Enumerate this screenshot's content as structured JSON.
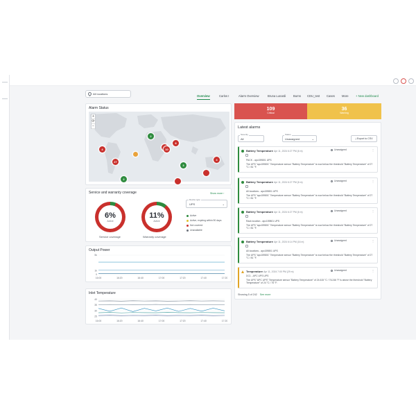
{
  "location_select": {
    "value": "All locations"
  },
  "tabs": [
    {
      "label": "Overview",
      "active": true
    },
    {
      "label": "Carlos I",
      "active": false
    },
    {
      "label": "Alarm Overview",
      "active": false
    },
    {
      "label": "Bruna Lunardi",
      "active": false
    },
    {
      "label": "Burns",
      "active": false
    },
    {
      "label": "CDU_test",
      "active": false
    },
    {
      "label": "Cases",
      "active": false
    },
    {
      "label": "More",
      "active": false
    }
  ],
  "new_dashboard_label": "New dashboard",
  "alarm_status": {
    "title": "Alarm Status",
    "zoom_in": "+",
    "zoom_reset": "⟳",
    "zoom_out": "−",
    "clusters": [
      {
        "label": "4",
        "color": "red"
      },
      {
        "label": "2",
        "color": "green"
      },
      {
        "label": "",
        "color": "red"
      },
      {
        "label": "8",
        "color": "red"
      },
      {
        "label": "10",
        "color": "red"
      },
      {
        "label": "27",
        "color": "red"
      },
      {
        "label": "",
        "color": "orange"
      },
      {
        "label": "3",
        "color": "green"
      },
      {
        "label": "4",
        "color": "red"
      },
      {
        "label": "2",
        "color": "green"
      },
      {
        "label": "",
        "color": "red"
      },
      {
        "label": "",
        "color": "red"
      }
    ]
  },
  "coverage": {
    "title": "Service and warranty coverage",
    "show_more": "Show more",
    "service": {
      "value": "6%",
      "label": "Active",
      "caption": "Service coverage"
    },
    "warranty": {
      "value": "11%",
      "label": "Active",
      "caption": "Warranty coverage"
    },
    "device_select_caption": "Device type",
    "device_select_value": "UPS",
    "legend": [
      {
        "label": "Active",
        "color": "#2e8b3e"
      },
      {
        "label": "Active, expiring within 90 days",
        "color": "#e0c02a"
      },
      {
        "label": "Not covered",
        "color": "#c9302c"
      },
      {
        "label": "Unavailable",
        "color": "#6b717a"
      }
    ]
  },
  "output_power": {
    "title": "Output Power",
    "y_ticks": [
      "5k",
      "1k",
      "0"
    ],
    "x_ticks": [
      "16:00",
      "16:20",
      "16:40",
      "17:00",
      "17:20",
      "17:40",
      "17:20"
    ],
    "series": [
      [
        3.2,
        3.2,
        3.2,
        3.2,
        3.2,
        3.2,
        3.2
      ],
      [
        1.2,
        1.2,
        1.2,
        1.2,
        1.2,
        1.2,
        1.2
      ],
      [
        0.3,
        0.3,
        0.3,
        0.3,
        0.3,
        0.3,
        0.3
      ]
    ]
  },
  "inlet_temperature": {
    "title": "Inlet Temperature",
    "y_ticks": [
      "40",
      "35",
      "30",
      "25"
    ],
    "x_ticks": [
      "16:00",
      "16:20",
      "16:40",
      "17:00",
      "17:20",
      "17:40",
      "17:20"
    ],
    "series": [
      [
        38.5,
        38.6,
        38.4,
        38.7,
        38.5,
        38.6,
        38.4,
        38.5,
        38.7,
        38.5,
        38.6,
        38.5
      ],
      [
        35.2,
        35.4,
        35.1,
        35.3,
        35.2,
        35.5,
        35.1,
        35.3,
        35.4,
        35.2,
        35.3,
        35.2
      ],
      [
        32.0,
        29.5,
        32.4,
        29.2,
        32.1,
        29.8,
        32.3,
        29.4,
        32.0,
        29.6,
        32.2,
        29.9
      ],
      [
        28.2,
        28.5,
        28.1,
        28.4,
        28.3,
        28.2,
        28.5,
        28.3,
        28.2,
        28.4,
        28.3,
        28.2
      ],
      [
        25.8,
        26.0,
        25.7,
        25.9,
        25.8,
        26.0,
        25.7,
        25.9,
        25.8,
        26.0,
        25.7,
        25.9
      ]
    ]
  },
  "status": {
    "critical": {
      "count": "109",
      "label": "Critical",
      "color": "#d9534f"
    },
    "warning": {
      "count": "36",
      "label": "Warning",
      "color": "#f0c24b"
    }
  },
  "latest_alarms": {
    "title": "Latest alarms",
    "filter1_caption": "Severity",
    "filter1_value": "All",
    "filter2_caption": "Status",
    "filter2_value": "Unassigned",
    "export_label": "Export to CSV",
    "items": [
      {
        "name": "Battery Temperature",
        "date": "Apr 11, 2024 6:27 PM (6 m)",
        "state": "Unassigned",
        "source": "PACK - apc159801 UPS",
        "message": "The UPS \"apc159801\" Temperature sensor \"Battery Temperature\" is now below the threshold \"Battery Temperature\" of 27 °C / 81 °F.",
        "type": "ok"
      },
      {
        "name": "Battery Temperature",
        "date": "Apr 11, 2024 6:27 PM (6 m)",
        "state": "Unassigned",
        "source": "All locations - apc159801 UPS",
        "message": "The UPS \"apc159801\" Temperature sensor \"Battery Temperature\" is now below the threshold \"Battery Temperature\" of 27 °C / 81 °F.",
        "type": "ok"
      },
      {
        "name": "Battery Temperature",
        "date": "Apr 11, 2024 6:27 PM (6 m)",
        "state": "Unassigned",
        "source": "Rack location - apc159801 UPS",
        "message": "The UPS \"apc159801\" Temperature sensor \"Battery Temperature\" is now below the threshold \"Battery Temperature\" of 27 °C / 81 °F.",
        "type": "ok"
      },
      {
        "name": "Battery Temperature",
        "date": "Apr 11, 2024 6:14 PM (16 m)",
        "state": "Unassigned",
        "source": "All locations - apc159801 UPS",
        "message": "The UPS \"apc159801\" Temperature sensor \"Battery Temperature\" is now below the threshold \"Battery Temperature\" of 27 °C / 81 °F.",
        "type": "ok"
      },
      {
        "name": "Temperature",
        "date": "Apr 11, 2024 7:00 PM (29 m)",
        "state": "Unassigned",
        "source": "DC1 - APC UPS UPS",
        "message": "The UPS \"APC UPS\" Temperature sensor \"Battery Temperature\" of 24.615 °C / 76.246 °F is above the threshold \"Battery Temperature\" of 24 °C / 75 °F.",
        "type": "warn"
      }
    ],
    "showing": "Showing 5 of 242",
    "see_more": "See more"
  }
}
